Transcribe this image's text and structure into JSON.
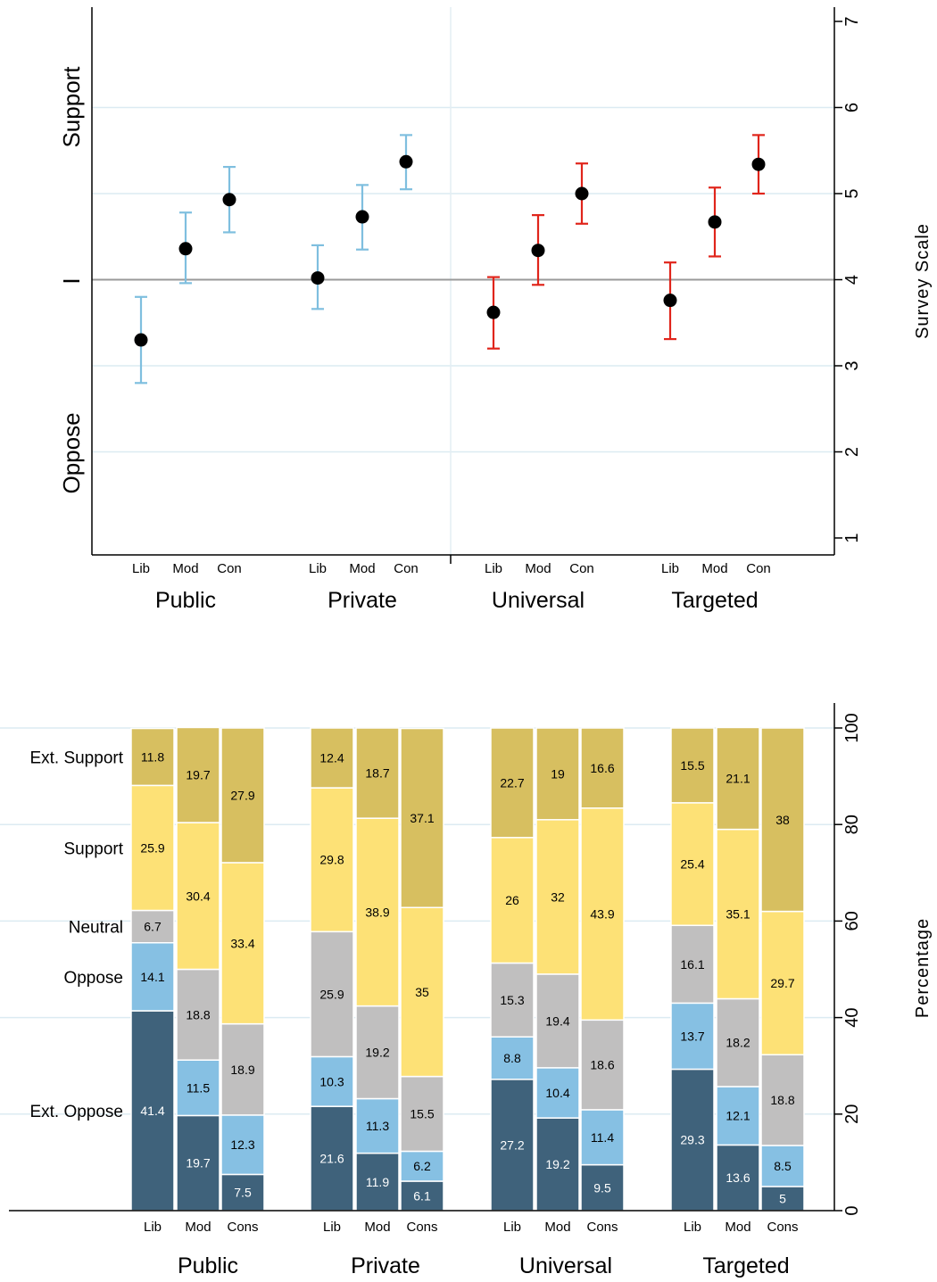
{
  "chart_data": [
    {
      "type": "scatter",
      "subtype": "point-with-error-bars",
      "title": "",
      "xlabel": "",
      "ylabel": "Survey Scale",
      "ylim": [
        1,
        7
      ],
      "yticks": [
        1,
        2,
        3,
        4,
        5,
        6,
        7
      ],
      "reference_line": 4,
      "left_axis_labels": [
        "Support",
        "I",
        "Oppose"
      ],
      "grid": true,
      "colors": {
        "light_blue": "#7fbfdf",
        "red": "#e0251b",
        "point": "#000000",
        "reference": "#999999",
        "grid": "#dcebf2"
      },
      "groups": [
        {
          "label": "Public",
          "color": "light_blue",
          "points": [
            {
              "label": "Lib",
              "y": 3.3,
              "lo": 2.8,
              "hi": 3.8
            },
            {
              "label": "Mod",
              "y": 4.36,
              "lo": 3.96,
              "hi": 4.78
            },
            {
              "label": "Con",
              "y": 4.93,
              "lo": 4.55,
              "hi": 5.31
            }
          ]
        },
        {
          "label": "Private",
          "color": "light_blue",
          "points": [
            {
              "label": "Lib",
              "y": 4.02,
              "lo": 3.66,
              "hi": 4.4
            },
            {
              "label": "Mod",
              "y": 4.73,
              "lo": 4.35,
              "hi": 5.1
            },
            {
              "label": "Con",
              "y": 5.37,
              "lo": 5.05,
              "hi": 5.68
            }
          ]
        },
        {
          "label": "Universal",
          "color": "red",
          "points": [
            {
              "label": "Lib",
              "y": 3.62,
              "lo": 3.2,
              "hi": 4.03
            },
            {
              "label": "Mod",
              "y": 4.34,
              "lo": 3.94,
              "hi": 4.75
            },
            {
              "label": "Con",
              "y": 5.0,
              "lo": 4.65,
              "hi": 5.35
            }
          ]
        },
        {
          "label": "Targeted",
          "color": "red",
          "points": [
            {
              "label": "Lib",
              "y": 3.76,
              "lo": 3.31,
              "hi": 4.2
            },
            {
              "label": "Mod",
              "y": 4.67,
              "lo": 4.27,
              "hi": 5.07
            },
            {
              "label": "Con",
              "y": 5.34,
              "lo": 5.0,
              "hi": 5.68
            }
          ]
        }
      ]
    },
    {
      "type": "bar",
      "subtype": "stacked-100",
      "title": "",
      "xlabel": "",
      "ylabel": "Percentage",
      "ylim": [
        0,
        100
      ],
      "yticks": [
        0,
        20,
        40,
        60,
        80,
        100
      ],
      "grid": true,
      "legend_placement": "left",
      "segment_labels": [
        "Ext. Oppose",
        "Oppose",
        "Neutral",
        "Support",
        "Ext. Support"
      ],
      "segment_colors": [
        "#3f627b",
        "#86c0e3",
        "#c0bfbf",
        "#fde176",
        "#d7bf60"
      ],
      "groups": [
        {
          "label": "Public",
          "bars": [
            {
              "label": "Lib",
              "values": [
                41.4,
                14.1,
                6.7,
                25.9,
                11.8
              ]
            },
            {
              "label": "Mod",
              "values": [
                19.7,
                11.5,
                18.8,
                30.4,
                19.7
              ]
            },
            {
              "label": "Cons",
              "values": [
                7.5,
                12.3,
                18.9,
                33.4,
                27.9
              ]
            }
          ]
        },
        {
          "label": "Private",
          "bars": [
            {
              "label": "Lib",
              "values": [
                21.6,
                10.3,
                25.9,
                29.8,
                12.4
              ]
            },
            {
              "label": "Mod",
              "values": [
                11.9,
                11.3,
                19.2,
                38.9,
                18.7
              ]
            },
            {
              "label": "Cons",
              "values": [
                6.1,
                6.2,
                15.5,
                35.0,
                37.1
              ]
            }
          ]
        },
        {
          "label": "Universal",
          "bars": [
            {
              "label": "Lib",
              "values": [
                27.2,
                8.8,
                15.3,
                26.0,
                22.7
              ]
            },
            {
              "label": "Mod",
              "values": [
                19.2,
                10.4,
                19.4,
                32.0,
                19.0
              ]
            },
            {
              "label": "Cons",
              "values": [
                9.5,
                11.4,
                18.6,
                43.9,
                16.6
              ]
            }
          ]
        },
        {
          "label": "Targeted",
          "bars": [
            {
              "label": "Lib",
              "values": [
                29.3,
                13.7,
                16.1,
                25.4,
                15.5
              ]
            },
            {
              "label": "Mod",
              "values": [
                13.6,
                12.1,
                18.2,
                35.1,
                21.1
              ]
            },
            {
              "label": "Cons",
              "values": [
                5.0,
                8.5,
                18.8,
                29.7,
                38.0
              ]
            }
          ]
        }
      ]
    }
  ]
}
